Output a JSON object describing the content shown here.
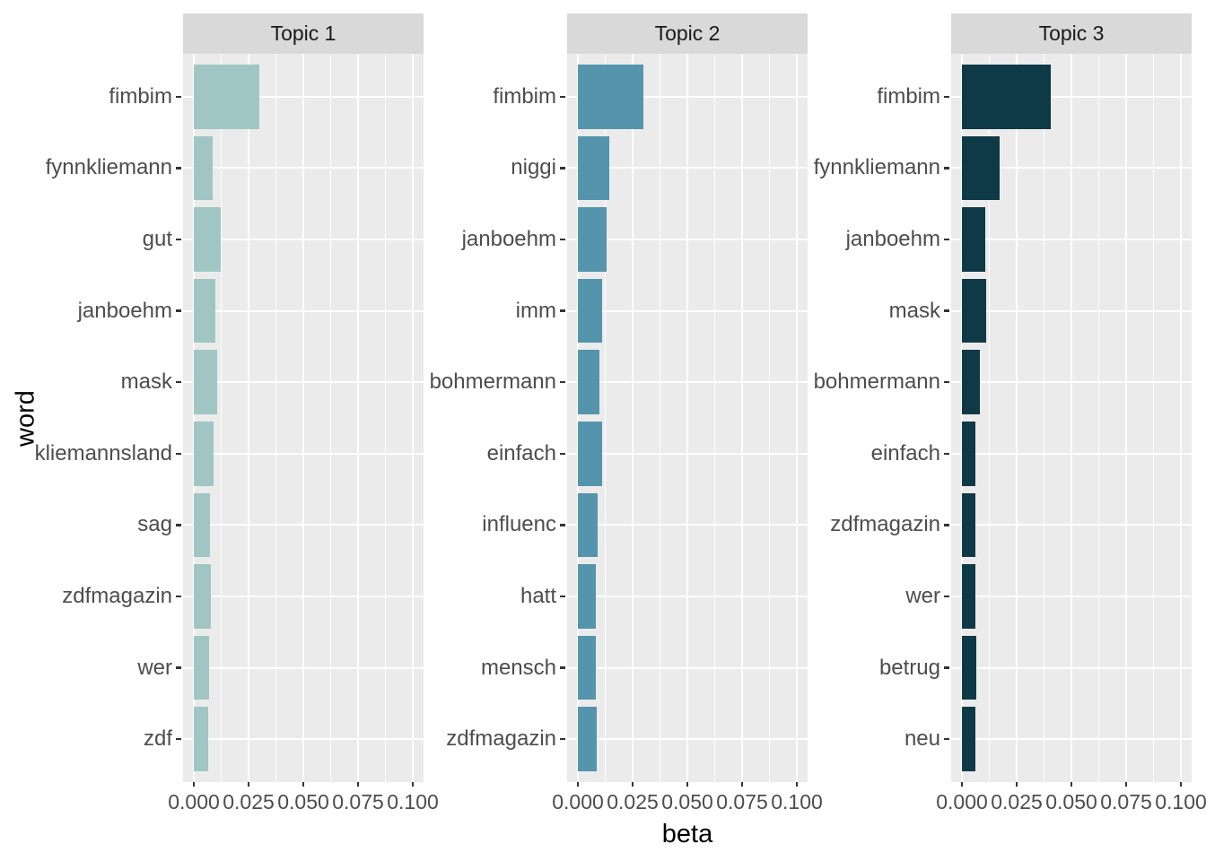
{
  "chart_data": {
    "type": "bar",
    "orientation": "horizontal",
    "title": "",
    "xlabel": "beta",
    "ylabel": "word",
    "xlim": [
      0,
      0.105
    ],
    "x_ticks": {
      "values": [
        0,
        0.025,
        0.05,
        0.075,
        0.1
      ],
      "labels": [
        "0.000",
        "0.025",
        "0.050",
        "0.075",
        "0.100"
      ]
    },
    "grid": "white major+minor vertical gridlines; white major horizontal gridline per category",
    "legend": "none",
    "facets": [
      {
        "title": "Topic 1",
        "bar_color": "#A0C6C3",
        "categories_top_to_bottom": [
          "fimbim",
          "fynnkliemann",
          "gut",
          "janboehm",
          "mask",
          "kliemannsland",
          "sag",
          "zdfmagazin",
          "wer",
          "zdf"
        ],
        "values": [
          0.0298,
          0.0086,
          0.0122,
          0.0098,
          0.0108,
          0.009,
          0.0074,
          0.0077,
          0.0071,
          0.0064
        ]
      },
      {
        "title": "Topic 2",
        "bar_color": "#5494AC",
        "categories_top_to_bottom": [
          "fimbim",
          "niggi",
          "janboehm",
          "imm",
          "bohmermann",
          "einfach",
          "influenc",
          "hatt",
          "mensch",
          "zdfmagazin"
        ],
        "values": [
          0.0298,
          0.0142,
          0.013,
          0.0111,
          0.0098,
          0.0112,
          0.009,
          0.0082,
          0.0082,
          0.0085
        ]
      },
      {
        "title": "Topic 3",
        "bar_color": "#0E3A47",
        "categories_top_to_bottom": [
          "fimbim",
          "fynnkliemann",
          "janboehm",
          "mask",
          "bohmermann",
          "einfach",
          "zdfmagazin",
          "wer",
          "betrug",
          "neu"
        ],
        "values": [
          0.0405,
          0.0172,
          0.0105,
          0.0111,
          0.0082,
          0.0061,
          0.0061,
          0.006,
          0.0064,
          0.0061
        ]
      }
    ],
    "style": {
      "background": "#FFFFFF",
      "panel_bg": "#EBEBEB",
      "strip_bg": "#D9D9D9",
      "grid_color": "#FFFFFF",
      "tick_mark_color": "#333333",
      "tick_label_color": "#4D4D4D",
      "strip_text_color": "#1A1A1A",
      "axis_title_color": "#000000"
    }
  }
}
